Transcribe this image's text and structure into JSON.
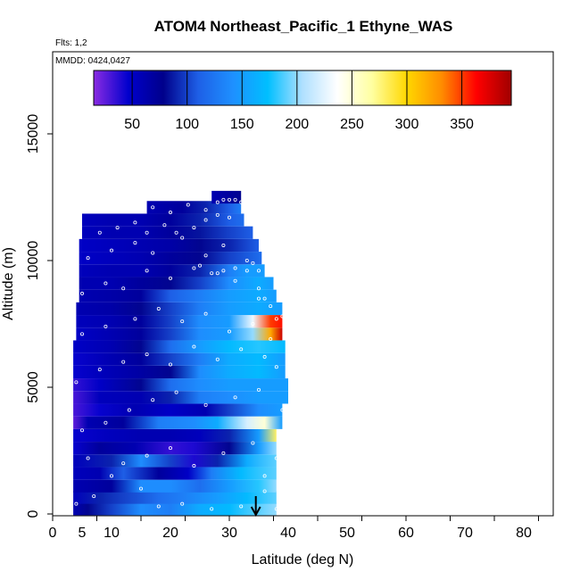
{
  "chart_data": {
    "type": "heatmap",
    "title": "ATOM4 Northeast_Pacific_1 Ethyne_WAS",
    "flights_label": "Flts: 1,2",
    "dates_label": "MMDD: 0424,0427",
    "xlabel": "Latitude (deg N)",
    "ylabel": "Altitude (m)",
    "xlim": [
      0,
      85
    ],
    "ylim": [
      0,
      17500
    ],
    "x_ticks": [
      0,
      5,
      10,
      20,
      30,
      40,
      50,
      60,
      70,
      80
    ],
    "x_minor_ticks": [
      0,
      7.5,
      15,
      22.5,
      30,
      37.5,
      45,
      52.5,
      60,
      67.5,
      75,
      82.5
    ],
    "y_ticks": [
      0,
      5000,
      10000,
      15000
    ],
    "colorbar": {
      "min": 15,
      "max": 395,
      "ticks": [
        50,
        100,
        150,
        200,
        250,
        300,
        350
      ],
      "colors": [
        "#8a2be2",
        "#0000cd",
        "#00008b",
        "#1e5fe6",
        "#1e90ff",
        "#00bfff",
        "#b0e0ff",
        "#ffffff",
        "#ffffa0",
        "#ffd700",
        "#ff8c00",
        "#ff0000",
        "#a00000"
      ]
    },
    "grid": false,
    "arrow_marker_lat": 34.5,
    "rows": [
      {
        "alt": 200,
        "lat_min": 3.5,
        "lat_max": 38,
        "values": [
          [
            3.5,
            60
          ],
          [
            6,
            80
          ],
          [
            10,
            100
          ],
          [
            15,
            140
          ],
          [
            20,
            130
          ],
          [
            25,
            160
          ],
          [
            30,
            170
          ],
          [
            35,
            190
          ],
          [
            38,
            200
          ]
        ]
      },
      {
        "alt": 650,
        "lat_min": 3.5,
        "lat_max": 38,
        "values": [
          [
            3.5,
            55
          ],
          [
            8,
            90
          ],
          [
            12,
            100
          ],
          [
            18,
            120
          ],
          [
            22,
            130
          ],
          [
            28,
            150
          ],
          [
            33,
            170
          ],
          [
            38,
            190
          ]
        ]
      },
      {
        "alt": 1100,
        "lat_min": 3.5,
        "lat_max": 38,
        "values": [
          [
            3.5,
            60
          ],
          [
            10,
            70
          ],
          [
            15,
            140
          ],
          [
            20,
            140
          ],
          [
            25,
            120
          ],
          [
            30,
            150
          ],
          [
            35,
            180
          ],
          [
            38,
            200
          ]
        ]
      },
      {
        "alt": 1600,
        "lat_min": 3.5,
        "lat_max": 38,
        "values": [
          [
            3.5,
            55
          ],
          [
            8,
            60
          ],
          [
            12,
            110
          ],
          [
            18,
            70
          ],
          [
            23,
            50
          ],
          [
            27,
            130
          ],
          [
            32,
            170
          ],
          [
            38,
            190
          ]
        ]
      },
      {
        "alt": 2100,
        "lat_min": 3.5,
        "lat_max": 38,
        "values": [
          [
            3.5,
            55
          ],
          [
            10,
            90
          ],
          [
            15,
            140
          ],
          [
            20,
            100
          ],
          [
            24,
            40
          ],
          [
            28,
            90
          ],
          [
            33,
            160
          ],
          [
            38,
            190
          ]
        ]
      },
      {
        "alt": 2600,
        "lat_min": 3.5,
        "lat_max": 38,
        "values": [
          [
            3.5,
            45
          ],
          [
            8,
            70
          ],
          [
            14,
            60
          ],
          [
            20,
            35
          ],
          [
            24,
            40
          ],
          [
            30,
            80
          ],
          [
            35,
            150
          ],
          [
            38,
            200
          ]
        ]
      },
      {
        "alt": 3100,
        "lat_min": 3.5,
        "lat_max": 38,
        "values": [
          [
            3.5,
            45
          ],
          [
            10,
            55
          ],
          [
            15,
            60
          ],
          [
            20,
            60
          ],
          [
            25,
            55
          ],
          [
            30,
            90
          ],
          [
            35,
            150
          ],
          [
            38,
            280
          ]
        ]
      },
      {
        "alt": 3600,
        "lat_min": 3.5,
        "lat_max": 39,
        "values": [
          [
            3.5,
            25
          ],
          [
            6,
            60
          ],
          [
            12,
            70
          ],
          [
            18,
            130
          ],
          [
            24,
            140
          ],
          [
            28,
            160
          ],
          [
            33,
            220
          ],
          [
            36,
            250
          ],
          [
            39,
            150
          ]
        ]
      },
      {
        "alt": 4100,
        "lat_min": 3.5,
        "lat_max": 39,
        "values": [
          [
            3.5,
            30
          ],
          [
            8,
            45
          ],
          [
            14,
            60
          ],
          [
            20,
            50
          ],
          [
            26,
            60
          ],
          [
            30,
            100
          ],
          [
            35,
            140
          ],
          [
            39,
            150
          ]
        ]
      },
      {
        "alt": 4600,
        "lat_min": 3.5,
        "lat_max": 40,
        "values": [
          [
            3.5,
            30
          ],
          [
            8,
            55
          ],
          [
            15,
            60
          ],
          [
            20,
            90
          ],
          [
            25,
            130
          ],
          [
            30,
            140
          ],
          [
            35,
            150
          ],
          [
            40,
            150
          ]
        ]
      },
      {
        "alt": 5100,
        "lat_min": 3.5,
        "lat_max": 40,
        "values": [
          [
            3.5,
            35
          ],
          [
            8,
            50
          ],
          [
            15,
            80
          ],
          [
            20,
            120
          ],
          [
            25,
            140
          ],
          [
            30,
            150
          ],
          [
            35,
            150
          ],
          [
            40,
            150
          ]
        ]
      },
      {
        "alt": 5600,
        "lat_min": 3.5,
        "lat_max": 39.5,
        "values": [
          [
            3.5,
            45
          ],
          [
            8,
            55
          ],
          [
            14,
            65
          ],
          [
            20,
            80
          ],
          [
            25,
            140
          ],
          [
            30,
            160
          ],
          [
            35,
            170
          ],
          [
            39.5,
            150
          ]
        ]
      },
      {
        "alt": 6100,
        "lat_min": 3.5,
        "lat_max": 39.5,
        "values": [
          [
            3.5,
            45
          ],
          [
            10,
            60
          ],
          [
            15,
            70
          ],
          [
            20,
            100
          ],
          [
            25,
            130
          ],
          [
            30,
            160
          ],
          [
            35,
            170
          ],
          [
            39.5,
            150
          ]
        ]
      },
      {
        "alt": 6600,
        "lat_min": 3.5,
        "lat_max": 39.5,
        "values": [
          [
            3.5,
            50
          ],
          [
            10,
            60
          ],
          [
            15,
            80
          ],
          [
            20,
            120
          ],
          [
            25,
            150
          ],
          [
            30,
            170
          ],
          [
            35,
            180
          ],
          [
            39.5,
            170
          ]
        ]
      },
      {
        "alt": 7100,
        "lat_min": 4,
        "lat_max": 39,
        "values": [
          [
            4,
            50
          ],
          [
            10,
            60
          ],
          [
            15,
            70
          ],
          [
            20,
            100
          ],
          [
            25,
            140
          ],
          [
            30,
            150
          ],
          [
            34,
            200
          ],
          [
            37,
            320
          ],
          [
            39,
            380
          ]
        ]
      },
      {
        "alt": 7600,
        "lat_min": 4,
        "lat_max": 39,
        "values": [
          [
            4,
            55
          ],
          [
            10,
            60
          ],
          [
            15,
            70
          ],
          [
            20,
            100
          ],
          [
            25,
            140
          ],
          [
            30,
            150
          ],
          [
            34,
            230
          ],
          [
            37,
            350
          ],
          [
            39,
            360
          ]
        ]
      },
      {
        "alt": 8100,
        "lat_min": 4,
        "lat_max": 39,
        "values": [
          [
            4,
            60
          ],
          [
            10,
            65
          ],
          [
            15,
            80
          ],
          [
            20,
            100
          ],
          [
            25,
            130
          ],
          [
            30,
            150
          ],
          [
            35,
            160
          ],
          [
            39,
            150
          ]
        ]
      },
      {
        "alt": 8600,
        "lat_min": 4.5,
        "lat_max": 38,
        "values": [
          [
            4.5,
            60
          ],
          [
            10,
            65
          ],
          [
            15,
            70
          ],
          [
            20,
            110
          ],
          [
            25,
            130
          ],
          [
            30,
            150
          ],
          [
            35,
            160
          ],
          [
            38,
            150
          ]
        ]
      },
      {
        "alt": 9100,
        "lat_min": 4.5,
        "lat_max": 37.5,
        "values": [
          [
            4.5,
            60
          ],
          [
            10,
            60
          ],
          [
            15,
            70
          ],
          [
            20,
            80
          ],
          [
            25,
            100
          ],
          [
            30,
            140
          ],
          [
            35,
            160
          ],
          [
            37.5,
            150
          ]
        ]
      },
      {
        "alt": 9600,
        "lat_min": 4.5,
        "lat_max": 36,
        "values": [
          [
            4.5,
            55
          ],
          [
            10,
            60
          ],
          [
            15,
            60
          ],
          [
            20,
            70
          ],
          [
            25,
            90
          ],
          [
            30,
            130
          ],
          [
            33,
            150
          ],
          [
            36,
            150
          ]
        ]
      },
      {
        "alt": 10100,
        "lat_min": 4.5,
        "lat_max": 35.5,
        "values": [
          [
            4.5,
            50
          ],
          [
            10,
            55
          ],
          [
            15,
            60
          ],
          [
            20,
            70
          ],
          [
            25,
            80
          ],
          [
            30,
            100
          ],
          [
            35.5,
            120
          ]
        ]
      },
      {
        "alt": 10600,
        "lat_min": 4.5,
        "lat_max": 35,
        "values": [
          [
            4.5,
            50
          ],
          [
            10,
            55
          ],
          [
            15,
            60
          ],
          [
            20,
            65
          ],
          [
            25,
            80
          ],
          [
            30,
            90
          ],
          [
            35,
            110
          ]
        ]
      },
      {
        "alt": 11100,
        "lat_min": 5,
        "lat_max": 34,
        "values": [
          [
            5,
            55
          ],
          [
            10,
            60
          ],
          [
            15,
            60
          ],
          [
            20,
            70
          ],
          [
            25,
            85
          ],
          [
            30,
            100
          ],
          [
            34,
            110
          ]
        ]
      },
      {
        "alt": 11600,
        "lat_min": 5,
        "lat_max": 32.5,
        "values": [
          [
            5,
            55
          ],
          [
            10,
            60
          ],
          [
            15,
            60
          ],
          [
            20,
            70
          ],
          [
            25,
            90
          ],
          [
            30,
            110
          ],
          [
            32.5,
            120
          ]
        ]
      },
      {
        "alt": 12100,
        "lat_min": 16,
        "lat_max": 32,
        "values": [
          [
            16,
            60
          ],
          [
            22,
            70
          ],
          [
            26,
            90
          ],
          [
            30,
            110
          ],
          [
            32,
            130
          ]
        ]
      },
      {
        "alt": 12500,
        "lat_min": 27,
        "lat_max": 32,
        "values": [
          [
            27,
            60
          ],
          [
            30,
            70
          ],
          [
            32,
            80
          ]
        ]
      }
    ],
    "points": [
      [
        4,
        400
      ],
      [
        7,
        700
      ],
      [
        10,
        1500
      ],
      [
        15,
        1000
      ],
      [
        18,
        300
      ],
      [
        22,
        400
      ],
      [
        27,
        200
      ],
      [
        32,
        300
      ],
      [
        36,
        900
      ],
      [
        38,
        200
      ],
      [
        6,
        2200
      ],
      [
        12,
        2000
      ],
      [
        16,
        2300
      ],
      [
        20,
        2600
      ],
      [
        24,
        1900
      ],
      [
        29,
        2400
      ],
      [
        34,
        2800
      ],
      [
        36,
        1500
      ],
      [
        38,
        2200
      ],
      [
        5,
        3300
      ],
      [
        9,
        3600
      ],
      [
        13,
        4100
      ],
      [
        17,
        4500
      ],
      [
        21,
        4800
      ],
      [
        26,
        4300
      ],
      [
        31,
        4600
      ],
      [
        35,
        4900
      ],
      [
        39,
        4100
      ],
      [
        4,
        5200
      ],
      [
        8,
        5700
      ],
      [
        12,
        6000
      ],
      [
        16,
        6300
      ],
      [
        20,
        5900
      ],
      [
        24,
        6600
      ],
      [
        28,
        6100
      ],
      [
        32,
        6500
      ],
      [
        36,
        6200
      ],
      [
        38,
        5800
      ],
      [
        5,
        7100
      ],
      [
        9,
        7400
      ],
      [
        14,
        7700
      ],
      [
        18,
        8100
      ],
      [
        22,
        7600
      ],
      [
        26,
        7900
      ],
      [
        30,
        7200
      ],
      [
        34,
        7500
      ],
      [
        37,
        6900
      ],
      [
        39,
        7800
      ],
      [
        5,
        8700
      ],
      [
        9,
        9100
      ],
      [
        12,
        8900
      ],
      [
        16,
        9600
      ],
      [
        20,
        9300
      ],
      [
        24,
        9700
      ],
      [
        28,
        9500
      ],
      [
        31,
        9200
      ],
      [
        35,
        8900
      ],
      [
        36,
        8500
      ],
      [
        6,
        10100
      ],
      [
        10,
        10400
      ],
      [
        14,
        10700
      ],
      [
        17,
        10300
      ],
      [
        22,
        10900
      ],
      [
        26,
        10200
      ],
      [
        29,
        10600
      ],
      [
        33,
        10000
      ],
      [
        35,
        9600
      ],
      [
        8,
        11100
      ],
      [
        11,
        11300
      ],
      [
        14,
        11500
      ],
      [
        16,
        11100
      ],
      [
        19,
        11400
      ],
      [
        21,
        11100
      ],
      [
        24,
        11300
      ],
      [
        26,
        11600
      ],
      [
        28,
        11800
      ],
      [
        30,
        11700
      ],
      [
        17,
        12100
      ],
      [
        20,
        11900
      ],
      [
        23,
        12200
      ],
      [
        26,
        12000
      ],
      [
        28,
        12300
      ],
      [
        29,
        12400
      ],
      [
        30,
        12400
      ],
      [
        31,
        12400
      ],
      [
        32,
        12300
      ],
      [
        25,
        9800
      ],
      [
        27,
        9500
      ],
      [
        29,
        9600
      ],
      [
        31,
        9700
      ],
      [
        33,
        9600
      ],
      [
        34,
        9900
      ],
      [
        35,
        8500
      ],
      [
        37,
        8200
      ],
      [
        38,
        7700
      ]
    ]
  }
}
